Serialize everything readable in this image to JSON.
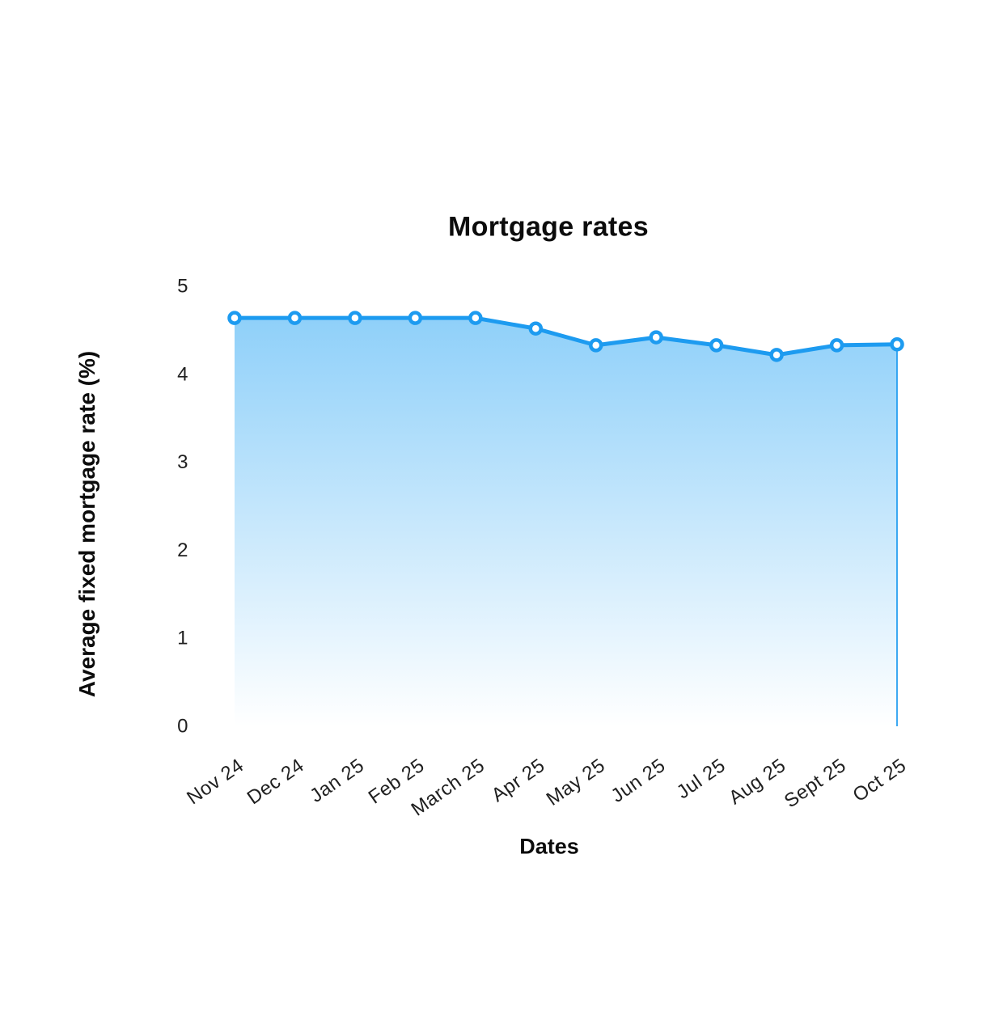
{
  "page": {
    "background": "#ffffff"
  },
  "chart_data": {
    "type": "area",
    "title": "Mortgage rates",
    "xlabel": "Dates",
    "ylabel": "Average fixed mortgage rate (%)",
    "categories": [
      "Nov 24",
      "Dec 24",
      "Jan 25",
      "Feb 25",
      "March 25",
      "Apr 25",
      "May 25",
      "Jun 25",
      "Jul 25",
      "Aug 25",
      "Sept 25",
      "Oct 25"
    ],
    "values": [
      4.64,
      4.64,
      4.64,
      4.64,
      4.64,
      4.52,
      4.33,
      4.42,
      4.33,
      4.22,
      4.33,
      4.34
    ],
    "ylim": [
      0,
      5
    ],
    "yticks": [
      0,
      1,
      2,
      3,
      4,
      5
    ],
    "grid": false,
    "legend": false,
    "markers": true,
    "x_tick_rotation_deg": -35,
    "colors": {
      "line": "#1d9bf0",
      "marker_fill": "#ffffff",
      "area_top": "#8fd0f9",
      "area_bottom": "#ffffff",
      "tick_text": "#1f1f1f",
      "title_text": "#0c0c0c"
    }
  }
}
